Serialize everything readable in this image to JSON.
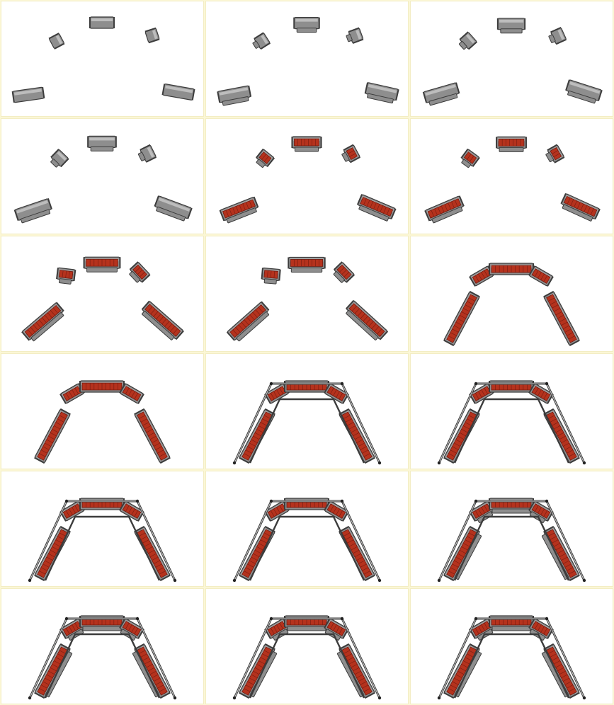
{
  "colors": {
    "background": "#ffffff",
    "grid_line": "#f3edc4",
    "metal": "#8e8e8e",
    "metal_light": "#c9c9c9",
    "metal_dark": "#3c3c3c",
    "brick": "#b5321d",
    "brick_dark": "#6e1a10"
  },
  "frames": [
    {
      "stage": "separate-pieces",
      "bricks": false,
      "spread": 1.0,
      "doubled": false,
      "frame_rails": false
    },
    {
      "stage": "pieces-pairing",
      "bricks": false,
      "spread": 0.95,
      "doubled": true,
      "frame_rails": false
    },
    {
      "stage": "pieces-pairing",
      "bricks": false,
      "spread": 0.85,
      "doubled": true,
      "frame_rails": false
    },
    {
      "stage": "pieces-pairing",
      "bricks": false,
      "spread": 0.8,
      "doubled": true,
      "frame_rails": false
    },
    {
      "stage": "bricks-appear",
      "bricks": true,
      "spread": 0.75,
      "doubled": true,
      "frame_rails": false
    },
    {
      "stage": "bricks-appear",
      "bricks": true,
      "spread": 0.72,
      "doubled": true,
      "frame_rails": false
    },
    {
      "stage": "arch-forming",
      "bricks": true,
      "spread": 0.4,
      "doubled": true,
      "frame_rails": false
    },
    {
      "stage": "arch-forming",
      "bricks": true,
      "spread": 0.38,
      "doubled": true,
      "frame_rails": false
    },
    {
      "stage": "assembled",
      "bricks": true,
      "spread": 0.0,
      "doubled": false,
      "frame_rails": false
    },
    {
      "stage": "assembled",
      "bricks": true,
      "spread": 0.0,
      "doubled": false,
      "frame_rails": false
    },
    {
      "stage": "rails-added",
      "bricks": true,
      "spread": 0.0,
      "doubled": false,
      "frame_rails": true
    },
    {
      "stage": "rails-added",
      "bricks": true,
      "spread": 0.0,
      "doubled": false,
      "frame_rails": true
    },
    {
      "stage": "framed",
      "bricks": true,
      "spread": 0.0,
      "doubled": false,
      "frame_rails": true
    },
    {
      "stage": "framed",
      "bricks": true,
      "spread": 0.0,
      "doubled": false,
      "frame_rails": true
    },
    {
      "stage": "double-framed",
      "bricks": true,
      "spread": 0.0,
      "doubled": true,
      "frame_rails": true
    },
    {
      "stage": "final",
      "bricks": true,
      "spread": 0.0,
      "doubled": true,
      "frame_rails": true
    },
    {
      "stage": "final",
      "bricks": true,
      "spread": 0.0,
      "doubled": true,
      "frame_rails": true
    },
    {
      "stage": "final",
      "bricks": true,
      "spread": 0.0,
      "doubled": true,
      "frame_rails": true
    }
  ]
}
